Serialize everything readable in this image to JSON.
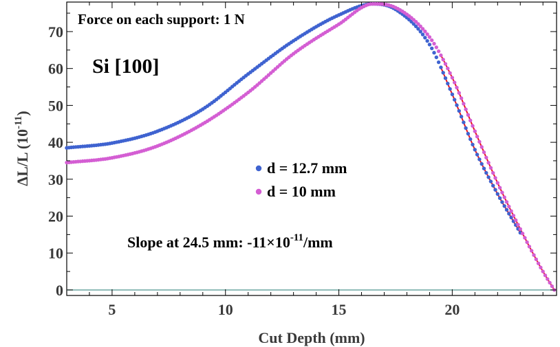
{
  "chart_data": {
    "type": "scatter",
    "title": "",
    "xlabel": "Cut Depth (mm)",
    "ylabel_main": "ΔL/L (10",
    "ylabel_sup": "-11",
    "ylabel_close": ")",
    "xlim": [
      3,
      24.6
    ],
    "ylim": [
      -1.5,
      78
    ],
    "x_ticks": [
      5,
      10,
      15,
      20
    ],
    "y_ticks": [
      0,
      10,
      20,
      30,
      40,
      50,
      60,
      70
    ],
    "grid": false,
    "legend_placement": "center",
    "annotations": {
      "force": "Force on each support: 1 N",
      "material": "Si [100]",
      "slope_prefix": "Slope at 24.5 mm: -11",
      "slope_times": "×",
      "slope_base": "10",
      "slope_exp": "-11",
      "slope_suffix": "/mm"
    },
    "series": [
      {
        "name": "d = 12.7 mm",
        "color": "#3f63d0",
        "x_start": 3,
        "x_end": 23.0,
        "knots_x": [
          3,
          5,
          7,
          9,
          11,
          13,
          15,
          16.5,
          17.5,
          19,
          20,
          21,
          22,
          23
        ],
        "knots_y": [
          38.5,
          39.8,
          43.0,
          49.0,
          58.5,
          67.5,
          74.5,
          77.5,
          76.0,
          66.5,
          53.0,
          38.0,
          26.0,
          15.5
        ]
      },
      {
        "name": "d = 10 mm",
        "color": "#d45ed3",
        "x_start": 3,
        "x_end": 24.5,
        "knots_x": [
          3,
          5,
          7,
          9,
          11,
          13,
          15,
          16.5,
          17.5,
          19,
          20,
          21,
          22,
          23,
          24,
          24.5
        ],
        "knots_y": [
          34.5,
          35.8,
          39.0,
          45.0,
          53.5,
          64.0,
          72.0,
          77.5,
          76.5,
          68.5,
          57.5,
          43.0,
          29.0,
          16.5,
          5.0,
          0.0
        ]
      }
    ],
    "fit_line": {
      "color": "#e8141e",
      "x_start": 19.5,
      "x_end": 24.5
    },
    "baseline": {
      "y": 0,
      "color": "#6ba6a0"
    }
  }
}
